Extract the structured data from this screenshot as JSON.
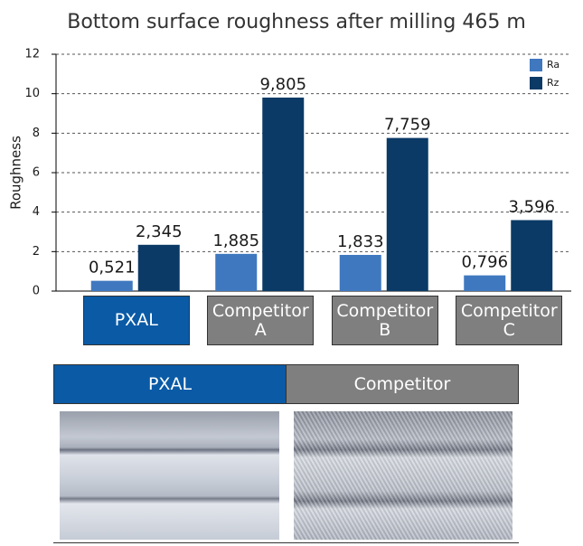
{
  "chart_data": {
    "type": "bar",
    "title": "Bottom surface roughness after milling 465 m",
    "y_label": "Roughness",
    "categories": [
      "PXAL",
      "Competitor A",
      "Competitor B",
      "Competitor C"
    ],
    "category_colors": [
      "#0a5aa6",
      "#7f7f7f",
      "#7f7f7f",
      "#7f7f7f"
    ],
    "series": [
      {
        "name": "Ra",
        "color": "#3f78bf",
        "values": [
          0.521,
          1.885,
          1.833,
          0.796
        ],
        "value_labels": [
          "0,521",
          "1,885",
          "1,833",
          "0,796"
        ]
      },
      {
        "name": "Rz",
        "color": "#0b3a66",
        "values": [
          2.345,
          9.805,
          7.759,
          3.596
        ],
        "value_labels": [
          "2,345",
          "9,805",
          "7,759",
          "3,596"
        ]
      }
    ],
    "ylim": [
      0,
      12
    ],
    "yticks": [
      0,
      2,
      4,
      6,
      8,
      10,
      12
    ],
    "grid": true,
    "legend": "top-right"
  },
  "comparison": {
    "headers": [
      "PXAL",
      "Competitor"
    ]
  }
}
